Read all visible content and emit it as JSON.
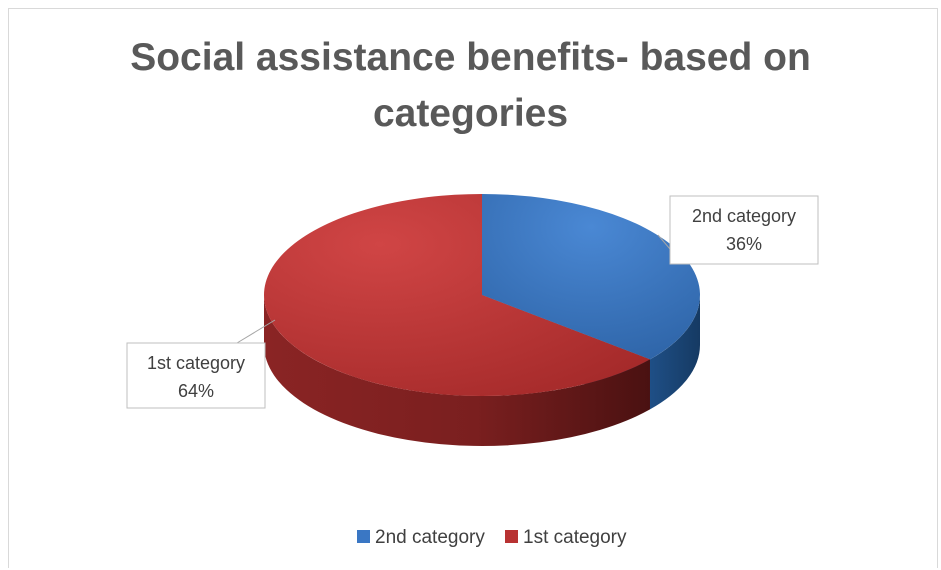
{
  "chart_data": {
    "type": "pie",
    "title": "Social assistance benefits-  based on categories",
    "categories": [
      "2nd category",
      "1st category"
    ],
    "values": [
      36,
      64
    ],
    "unit": "%",
    "colors": [
      "#3a77c4",
      "#b83232"
    ],
    "data_labels": [
      {
        "name": "2nd category",
        "value": "36%"
      },
      {
        "name": "1st category",
        "value": "64%"
      }
    ],
    "legend": {
      "position": "bottom",
      "entries": [
        "2nd category",
        "1st category"
      ]
    },
    "style": "3d"
  }
}
